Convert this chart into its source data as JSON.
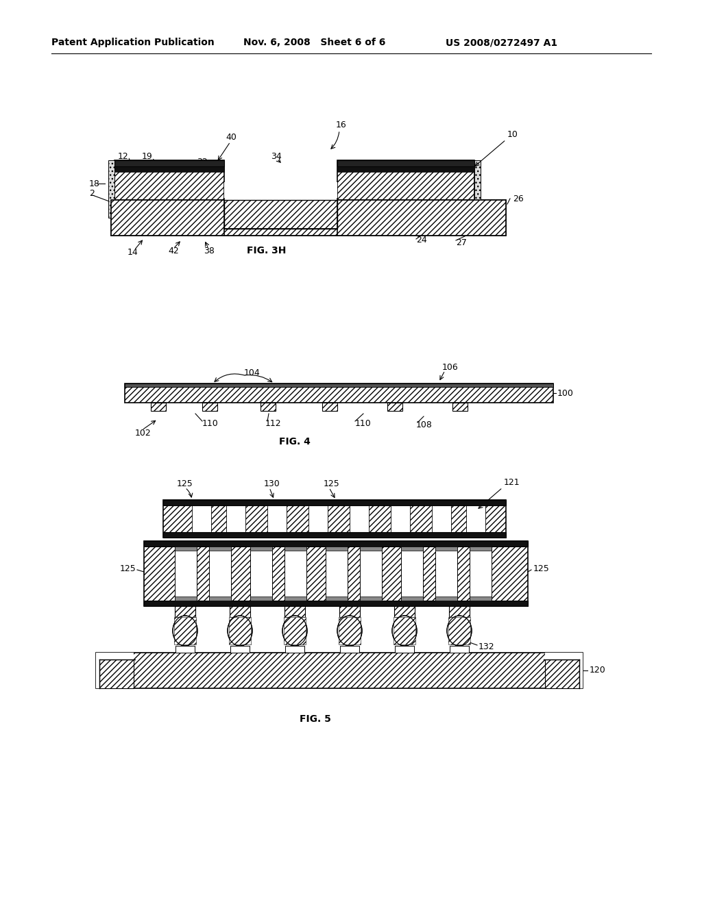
{
  "bg_color": "#ffffff",
  "header_left": "Patent Application Publication",
  "header_mid": "Nov. 6, 2008   Sheet 6 of 6",
  "header_right": "US 2008/0272497 A1",
  "fig3h_label": "FIG. 3H",
  "fig4_label": "FIG. 4",
  "fig5_label": "FIG. 5"
}
